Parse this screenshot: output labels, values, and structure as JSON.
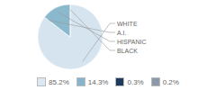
{
  "chart_data": {
    "type": "pie",
    "categories": [
      "WHITE",
      "A.I.",
      "HISPANIC",
      "BLACK"
    ],
    "values": [
      85.2,
      0.3,
      14.3,
      0.2
    ],
    "colors": [
      "#d6e4f0",
      "#8ab8cc",
      "#8ab8cc",
      "#233d5a"
    ],
    "legend": "bottom",
    "legend_entries": [
      {
        "value": 85.2,
        "label": "85.2%",
        "color": "#dce9f3"
      },
      {
        "value": 14.3,
        "label": "14.3%",
        "color": "#8ab4cc"
      },
      {
        "value": 0.3,
        "label": "0.3%",
        "color": "#1f3a5f"
      },
      {
        "value": 0.2,
        "label": "0.2%",
        "color": "#8a9aaa"
      }
    ]
  }
}
